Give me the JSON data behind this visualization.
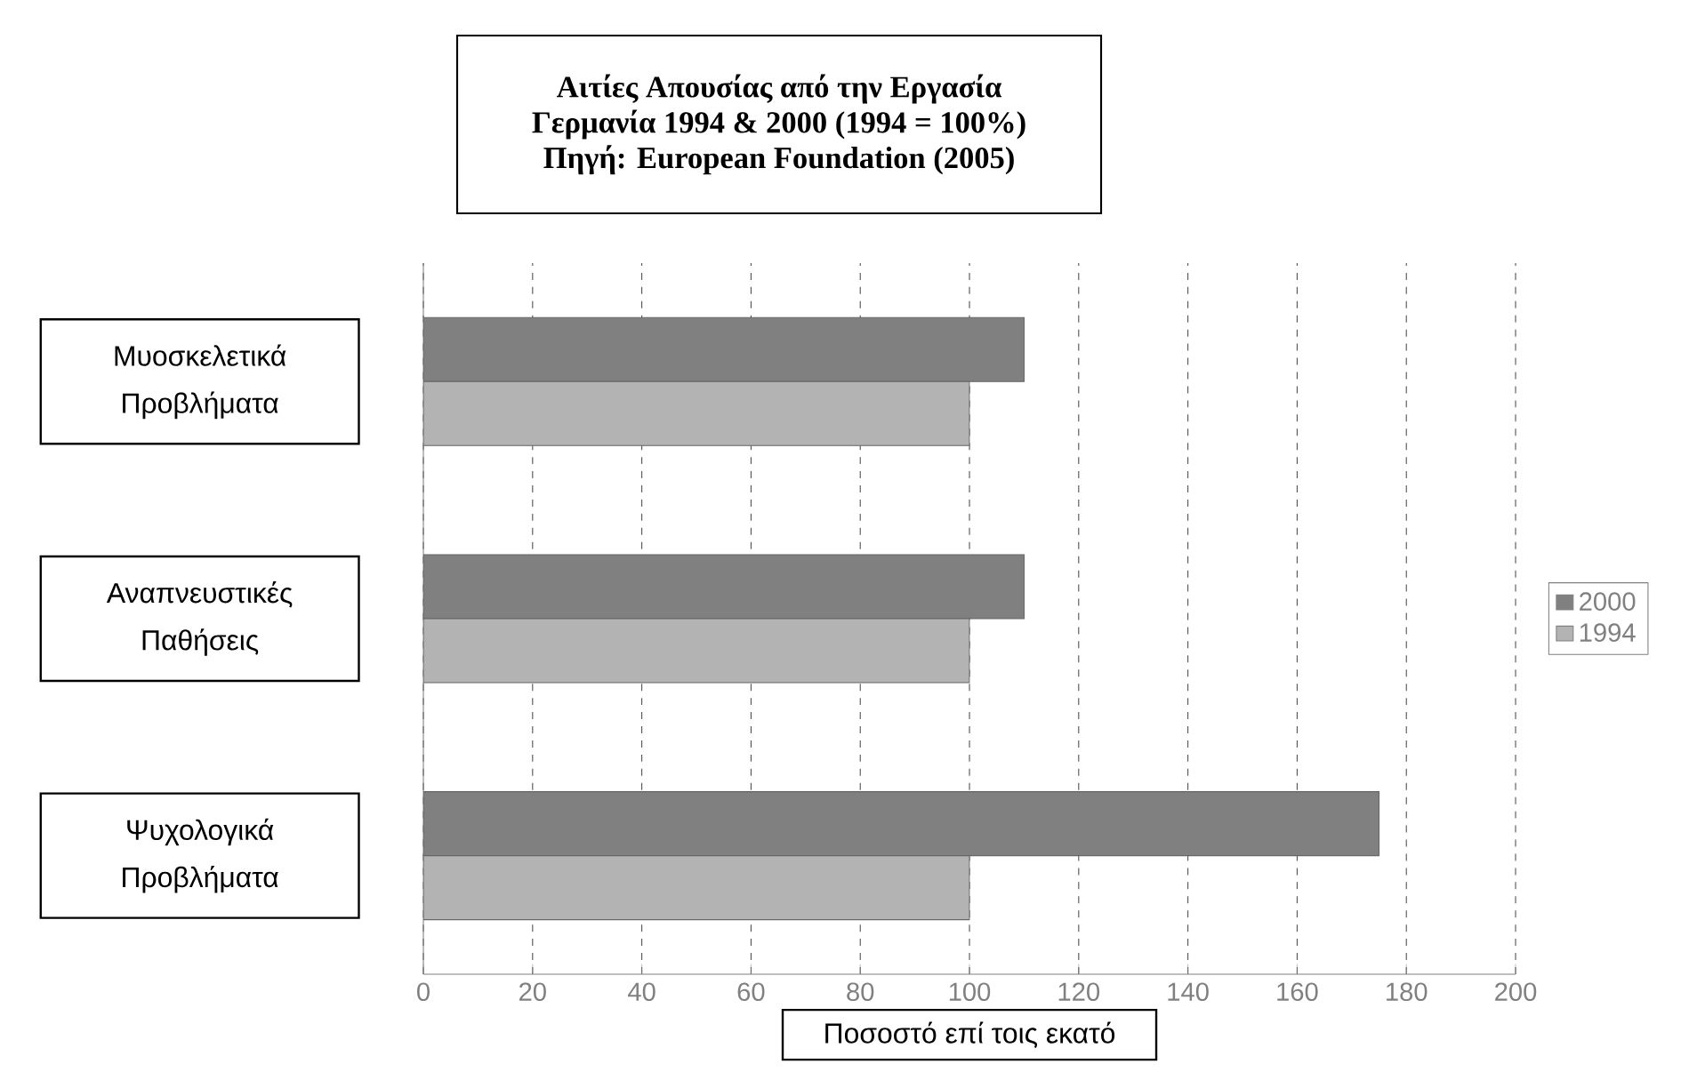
{
  "chart_data": {
    "type": "bar",
    "orientation": "horizontal",
    "title": "Αιτίες Απουσίας από την Εργασία",
    "subtitle": "Γερμανία 1994 & 2000 (1994 = 100%)",
    "annotations": [
      "Πηγή: European Foundation (2005)"
    ],
    "xlabel": "Ποσοστό επί τοις εκατό",
    "categories": [
      "Μυοσκελετικά Προβλήματα",
      "Αναπνευστικές Παθήσεις",
      "Ψυχολογικά Προβλήματα"
    ],
    "series": [
      {
        "name": "2000",
        "color": "#808080",
        "values": [
          110,
          110,
          175
        ]
      },
      {
        "name": "1994",
        "color": "#b3b3b3",
        "values": [
          100,
          100,
          100
        ]
      }
    ],
    "xlim": [
      0,
      200
    ],
    "xticks": [
      0,
      20,
      40,
      60,
      80,
      100,
      120,
      140,
      160,
      180,
      200
    ],
    "grid": "x",
    "legend": "right"
  }
}
